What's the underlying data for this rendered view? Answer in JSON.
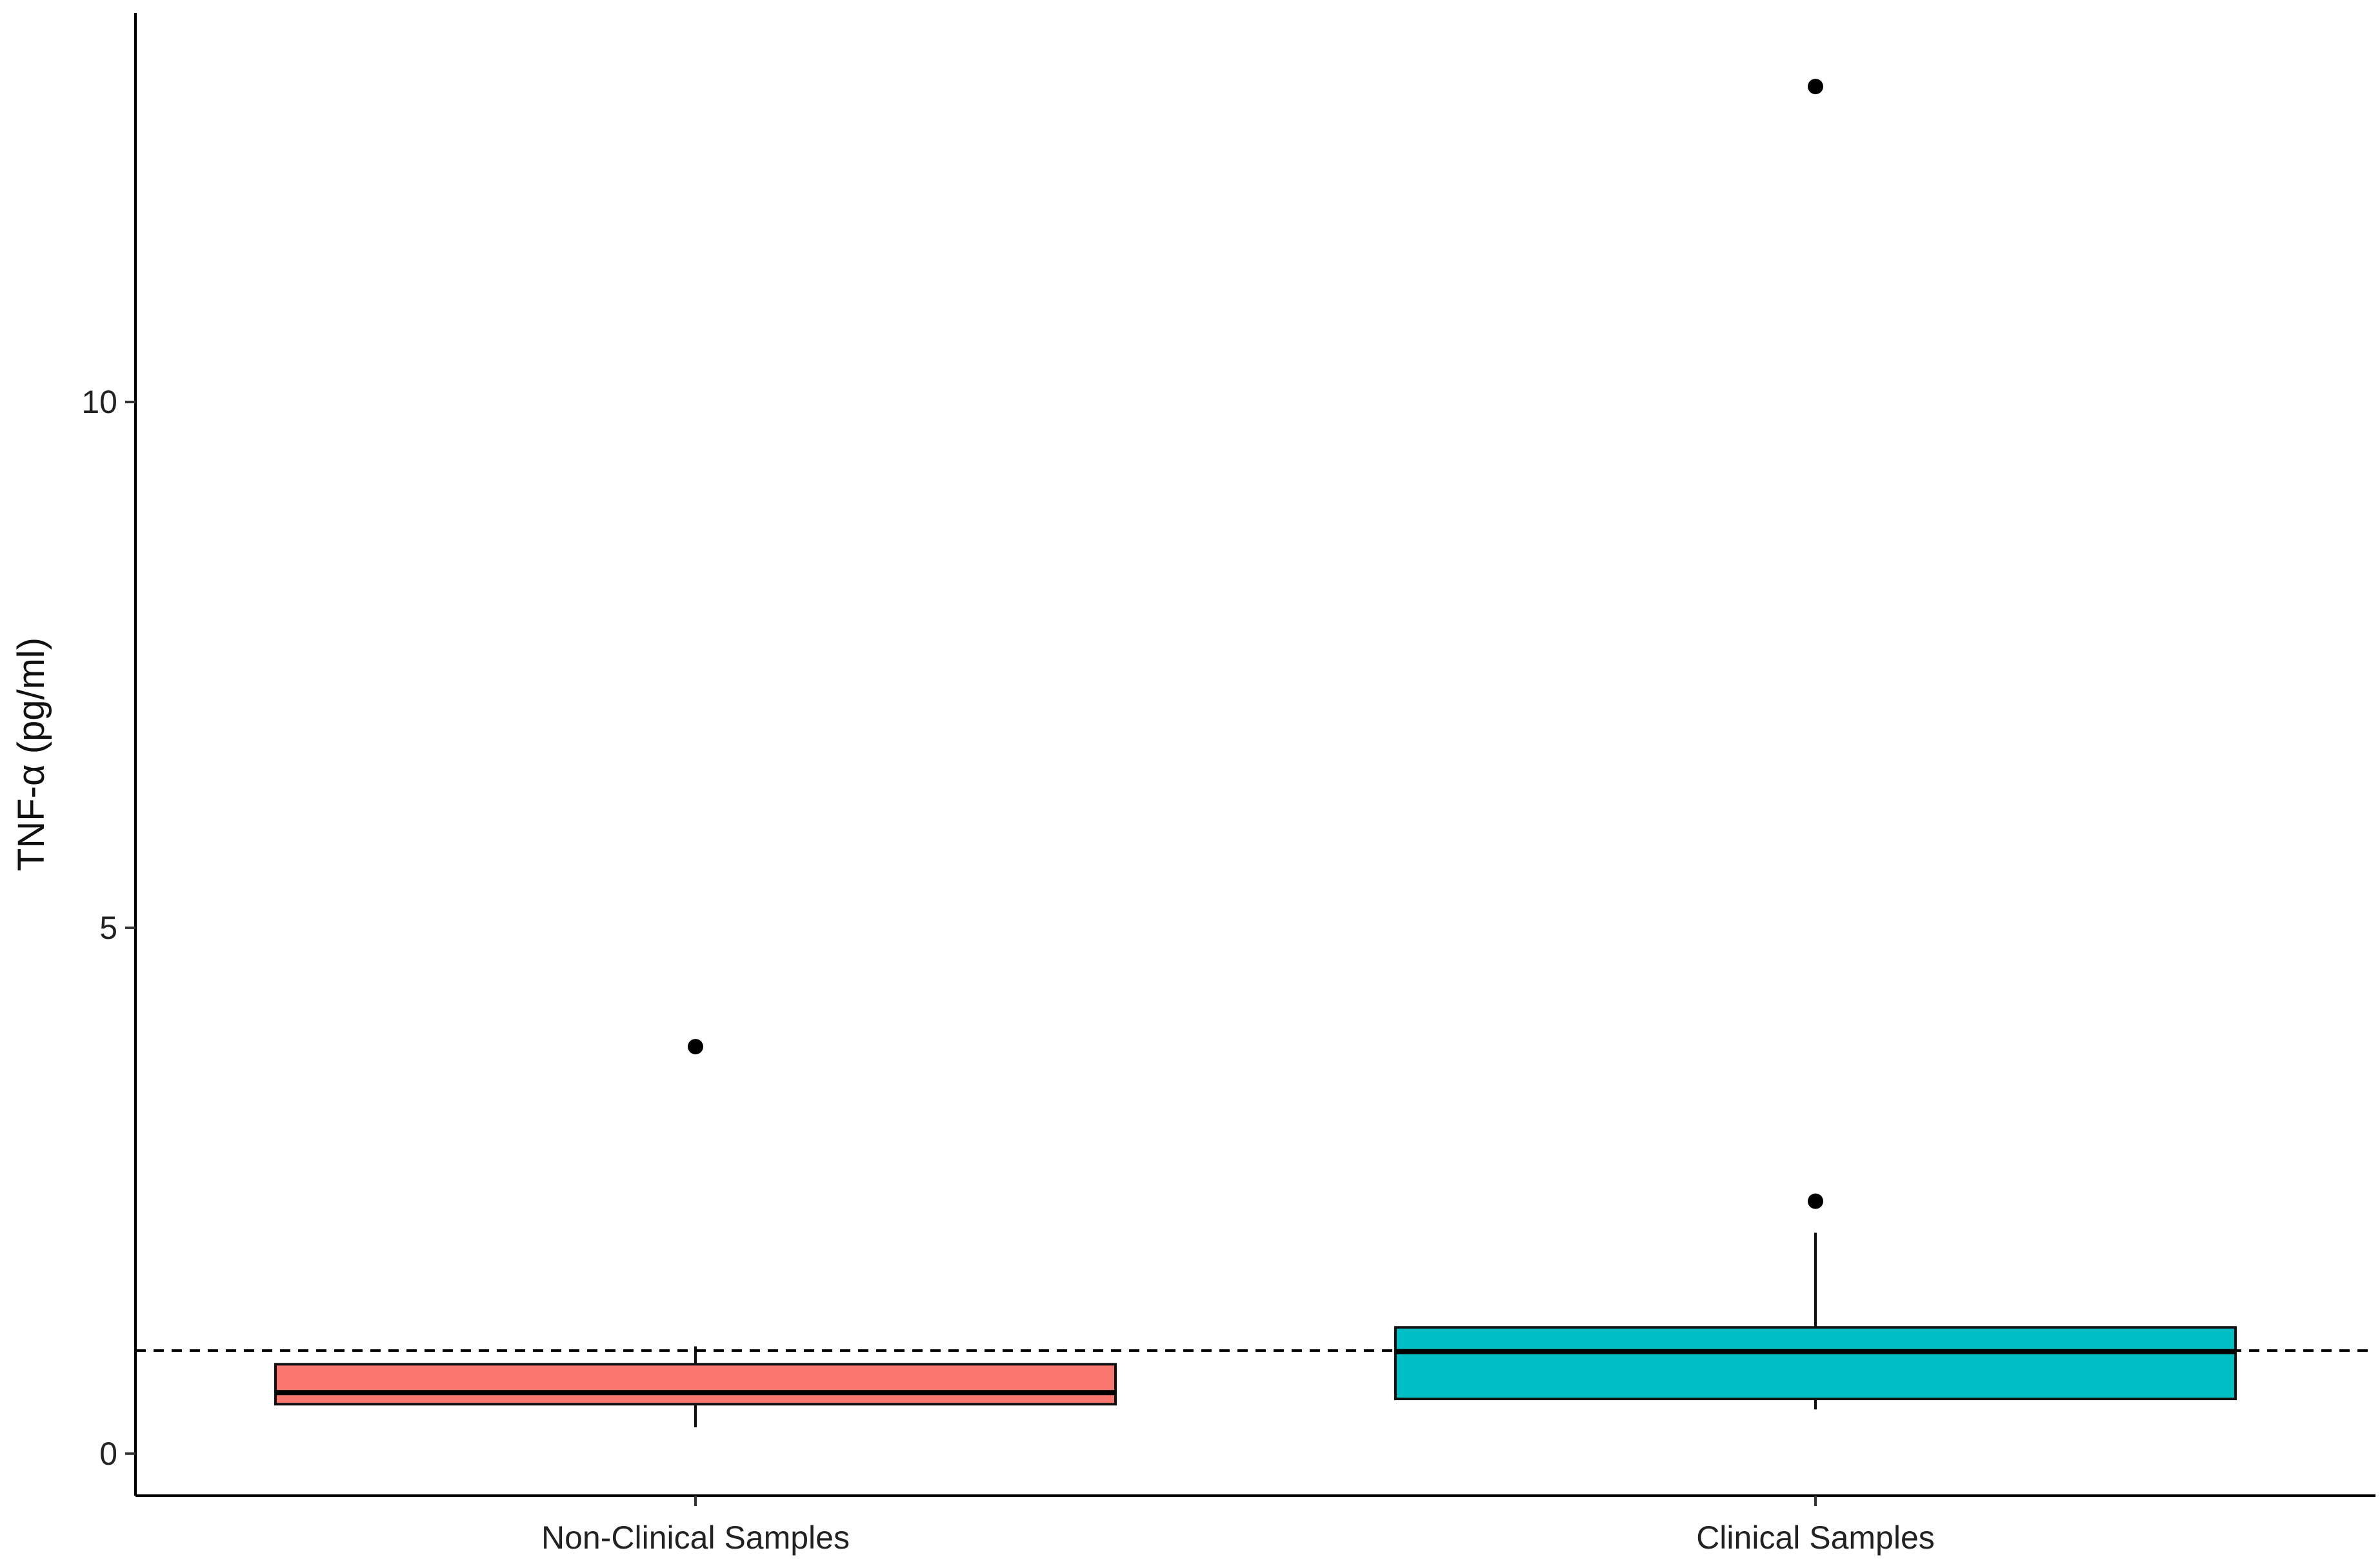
{
  "chart_data": {
    "type": "box",
    "title": "",
    "xlabel": "",
    "ylabel": "TNF-α (pg/ml)",
    "ylim": [
      -0.4,
      13.7
    ],
    "yticks": [
      0,
      5,
      10
    ],
    "ytick_labels": [
      "0",
      "5",
      "10"
    ],
    "categories": [
      "Non-Clinical Samples",
      "Clinical Samples"
    ],
    "boxes": [
      {
        "category": "Non-Clinical Samples",
        "whisker_low": 0.25,
        "q1": 0.47,
        "median": 0.58,
        "q3": 0.85,
        "whisker_high": 1.02,
        "outliers": [
          3.87
        ],
        "color": "#F8766D"
      },
      {
        "category": "Clinical Samples",
        "whisker_low": 0.42,
        "q1": 0.52,
        "median": 0.97,
        "q3": 1.2,
        "whisker_high": 2.1,
        "outliers": [
          2.4,
          13.0
        ],
        "color": "#00BFC4"
      }
    ],
    "reference_line": {
      "y": 0.98,
      "style": "dashed"
    },
    "grid": false,
    "legend": "none"
  }
}
